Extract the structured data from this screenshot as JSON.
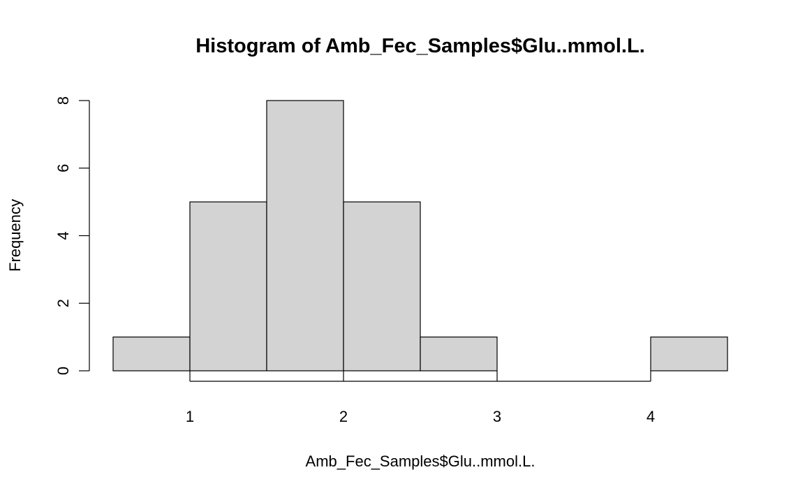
{
  "chart_data": {
    "type": "bar",
    "title": "Histogram of Amb_Fec_Samples$Glu..mmol.L.",
    "xlabel": "Amb_Fec_Samples$Glu..mmol.L.",
    "ylabel": "Frequency",
    "bins": [
      {
        "start": 0.5,
        "end": 1.0,
        "count": 1
      },
      {
        "start": 1.0,
        "end": 1.5,
        "count": 5
      },
      {
        "start": 1.5,
        "end": 2.0,
        "count": 8
      },
      {
        "start": 2.0,
        "end": 2.5,
        "count": 5
      },
      {
        "start": 2.5,
        "end": 3.0,
        "count": 1
      },
      {
        "start": 3.0,
        "end": 3.5,
        "count": 0
      },
      {
        "start": 3.5,
        "end": 4.0,
        "count": 0
      },
      {
        "start": 4.0,
        "end": 4.5,
        "count": 1
      }
    ],
    "xticks": [
      1,
      2,
      3,
      4
    ],
    "yticks": [
      0,
      2,
      4,
      6,
      8
    ],
    "xlim": [
      0.5,
      4.5
    ],
    "ylim": [
      0,
      8
    ],
    "bar_color": "#d3d3d3",
    "grid": false,
    "legend": "none"
  }
}
